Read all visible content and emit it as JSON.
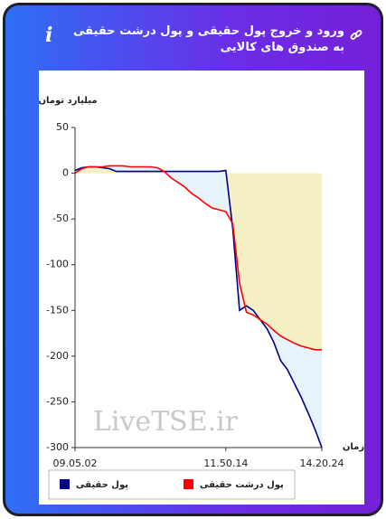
{
  "header": {
    "title": "ورود و خروج پول حقیقی و پول درشت حقیقی به صندوق های کالایی"
  },
  "chart_data": {
    "type": "line",
    "y_label": "میلیارد تومان",
    "x_label": "زمان",
    "watermark": "LiveTSE.ir",
    "categories": [
      "09.05.02",
      null,
      null,
      null,
      null,
      null,
      null,
      null,
      null,
      null,
      null,
      null,
      null,
      null,
      null,
      null,
      null,
      null,
      null,
      null,
      null,
      null,
      "11.50.14",
      null,
      null,
      null,
      null,
      null,
      null,
      null,
      null,
      null,
      null,
      null,
      null,
      null,
      "14.20.24"
    ],
    "series": [
      {
        "name": "پول حقیقی",
        "color": "#000080",
        "fill": "#e6f3fa",
        "values": [
          3,
          6,
          7,
          7,
          6,
          5,
          2,
          2,
          2,
          2,
          2,
          2,
          2,
          2,
          2,
          2,
          2,
          2,
          2,
          2,
          2,
          2,
          3,
          -60,
          -150,
          -145,
          -150,
          -160,
          -170,
          -185,
          -205,
          -215,
          -230,
          -245,
          -262,
          -280,
          -300
        ]
      },
      {
        "name": "پول درشت حقیقی",
        "color": "#ff0000",
        "fill": "#f4f0c4",
        "values": [
          0,
          5,
          7,
          7,
          7,
          8,
          8,
          8,
          7,
          7,
          7,
          7,
          6,
          2,
          -5,
          -10,
          -15,
          -22,
          -27,
          -33,
          -38,
          -40,
          -42,
          -55,
          -120,
          -152,
          -155,
          -160,
          -165,
          -172,
          -178,
          -182,
          -186,
          -189,
          -191,
          -193,
          -193
        ]
      }
    ],
    "ylim": [
      -300,
      50
    ],
    "yticks": [
      50,
      0,
      -50,
      -100,
      -150,
      -200,
      -250,
      -300
    ]
  }
}
